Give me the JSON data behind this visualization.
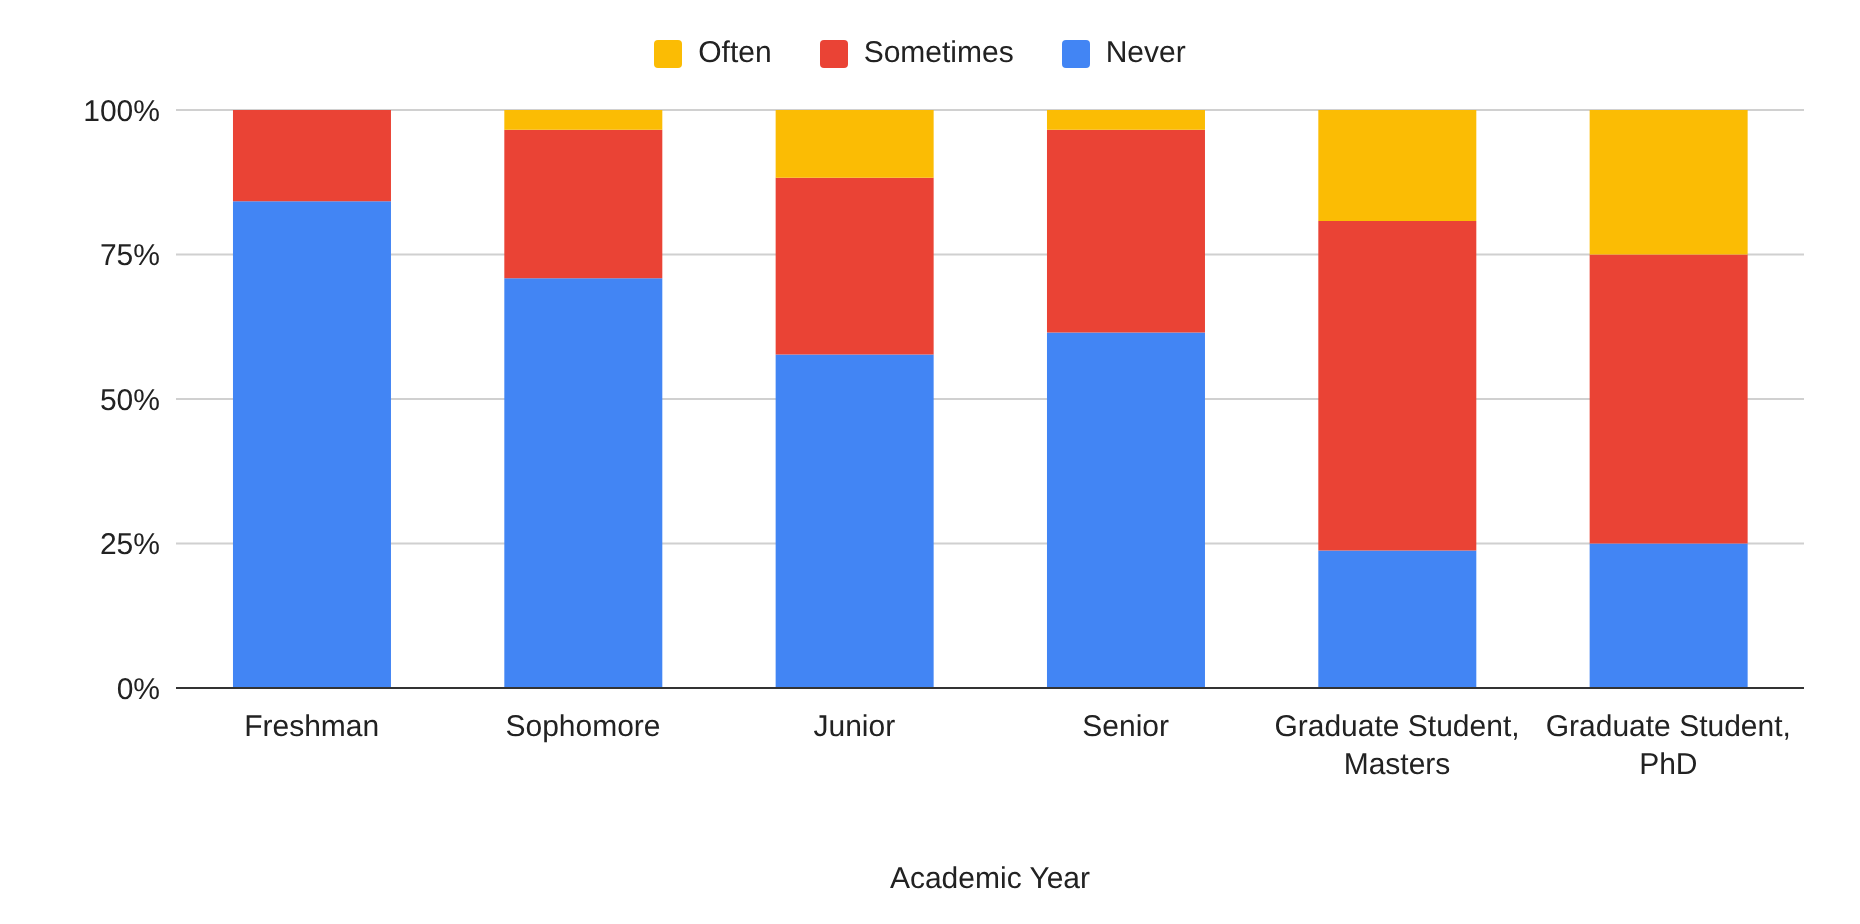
{
  "chart_data": {
    "type": "bar",
    "stacked": true,
    "xlabel": "Academic Year",
    "categories": [
      "Freshman",
      "Sophomore",
      "Junior",
      "Senior",
      "Graduate Student, Masters",
      "Graduate Student, PhD"
    ],
    "series": [
      {
        "name": "Never",
        "color": "#4285f4",
        "values": [
          84.2,
          70.9,
          57.7,
          61.5,
          23.8,
          25
        ]
      },
      {
        "name": "Sometimes",
        "color": "#ea4335",
        "values": [
          15.8,
          25.7,
          30.6,
          35.1,
          57,
          50
        ]
      },
      {
        "name": "Often",
        "color": "#fbbc04",
        "values": [
          0,
          3.4,
          11.7,
          3.4,
          19.2,
          25
        ]
      }
    ],
    "ylim": [
      0,
      100
    ],
    "yticks": [
      {
        "value": 0,
        "label": "0%"
      },
      {
        "value": 25,
        "label": "25%"
      },
      {
        "value": 50,
        "label": "50%"
      },
      {
        "value": 75,
        "label": "75%"
      },
      {
        "value": 100,
        "label": "100%"
      }
    ],
    "grid": "y",
    "legend": "top"
  }
}
